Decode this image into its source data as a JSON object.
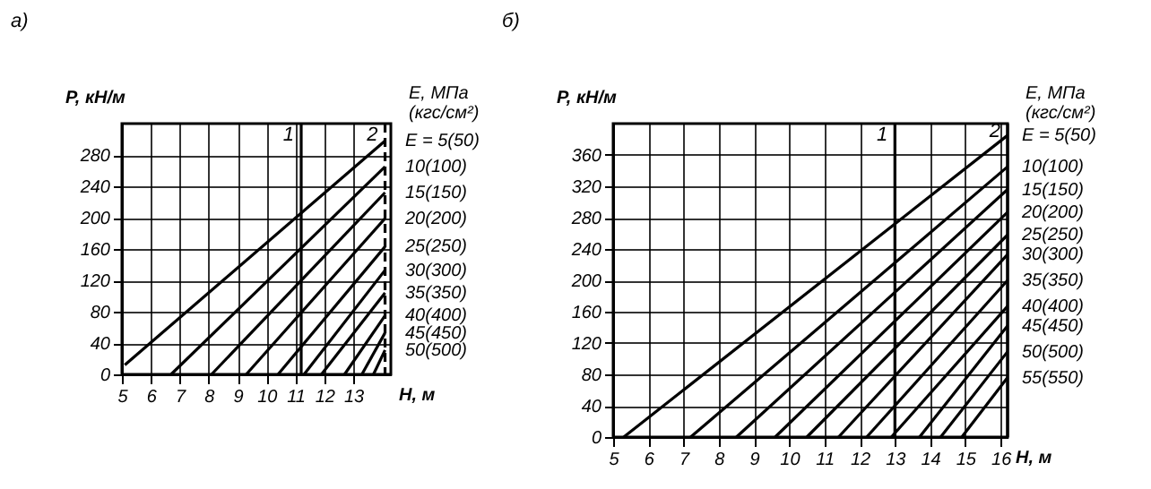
{
  "chart_data": [
    {
      "type": "line",
      "title": "а)",
      "xlabel": "H, м",
      "ylabel": "P, кН/м",
      "legend_title": "E, МПа (кгс/см²)",
      "legend": false,
      "grid": true,
      "xlim": [
        5,
        14.3
      ],
      "ylim": [
        0,
        320
      ],
      "xticks": [
        5,
        6,
        7,
        8,
        9,
        10,
        11,
        12,
        13
      ],
      "yticks": [
        0,
        40,
        80,
        120,
        160,
        200,
        240,
        280
      ],
      "series": [
        {
          "name": "E = 5(50)",
          "color": "#000000",
          "x": [
            5.1,
            14.1
          ],
          "values": [
            12,
            298
          ]
        },
        {
          "name": "10(100)",
          "color": "#000000",
          "x": [
            6.7,
            14.1
          ],
          "values": [
            0,
            265
          ]
        },
        {
          "name": "15(150)",
          "color": "#000000",
          "x": [
            8.1,
            14.1
          ],
          "values": [
            0,
            232
          ]
        },
        {
          "name": "20(200)",
          "color": "#000000",
          "x": [
            9.3,
            14.1
          ],
          "values": [
            0,
            199
          ]
        },
        {
          "name": "25(250)",
          "color": "#000000",
          "x": [
            10.4,
            14.1
          ],
          "values": [
            0,
            163
          ]
        },
        {
          "name": "30(300)",
          "color": "#000000",
          "x": [
            11.3,
            14.1
          ],
          "values": [
            0,
            133
          ]
        },
        {
          "name": "35(350)",
          "color": "#000000",
          "x": [
            11.9,
            14.1
          ],
          "values": [
            0,
            104
          ]
        },
        {
          "name": "40(400)",
          "color": "#000000",
          "x": [
            12.7,
            14.1
          ],
          "values": [
            0,
            75
          ]
        },
        {
          "name": "45(450)",
          "color": "#000000",
          "x": [
            13.3,
            14.1
          ],
          "values": [
            0,
            53
          ]
        },
        {
          "name": "50(500)",
          "color": "#000000",
          "x": [
            13.7,
            14.1
          ],
          "values": [
            0,
            31
          ]
        }
      ],
      "ref_lines": [
        {
          "axis": "x",
          "value": 11.2,
          "line_style": "solid",
          "color": "#000000"
        },
        {
          "axis": "x",
          "value": 14.1,
          "line_style": "dashed",
          "color": "#000000"
        }
      ],
      "annotations": [
        {
          "text": "1",
          "x": 11.2,
          "y": 305
        },
        {
          "text": "2",
          "x": 14.1,
          "y": 305
        }
      ]
    },
    {
      "type": "line",
      "title": "б)",
      "xlabel": "H, м",
      "ylabel": "P, кН/м",
      "legend_title": "E, МПа (кгс/см²)",
      "legend": false,
      "grid": true,
      "xlim": [
        5,
        16.2
      ],
      "ylim": [
        0,
        400
      ],
      "xticks": [
        5,
        6,
        7,
        8,
        9,
        10,
        11,
        12,
        13,
        14,
        15,
        16
      ],
      "yticks": [
        0,
        40,
        80,
        120,
        160,
        200,
        240,
        280,
        320,
        360
      ],
      "series": [
        {
          "name": "E = 5(50)",
          "color": "#000000",
          "x": [
            5.3,
            16.2
          ],
          "values": [
            0,
            385
          ]
        },
        {
          "name": "10(100)",
          "color": "#000000",
          "x": [
            7.2,
            16.2
          ],
          "values": [
            0,
            345
          ]
        },
        {
          "name": "15(150)",
          "color": "#000000",
          "x": [
            8.5,
            16.2
          ],
          "values": [
            0,
            316
          ]
        },
        {
          "name": "20(200)",
          "color": "#000000",
          "x": [
            9.6,
            16.2
          ],
          "values": [
            0,
            287
          ]
        },
        {
          "name": "25(250)",
          "color": "#000000",
          "x": [
            10.5,
            16.2
          ],
          "values": [
            0,
            258
          ]
        },
        {
          "name": "30(300)",
          "color": "#000000",
          "x": [
            11.4,
            16.2
          ],
          "values": [
            0,
            233
          ]
        },
        {
          "name": "35(350)",
          "color": "#000000",
          "x": [
            12.2,
            16.2
          ],
          "values": [
            0,
            200
          ]
        },
        {
          "name": "40(400)",
          "color": "#000000",
          "x": [
            12.9,
            16.2
          ],
          "values": [
            0,
            167
          ]
        },
        {
          "name": "45(450)",
          "color": "#000000",
          "x": [
            13.7,
            16.2
          ],
          "values": [
            0,
            142
          ]
        },
        {
          "name": "50(500)",
          "color": "#000000",
          "x": [
            14.3,
            16.2
          ],
          "values": [
            0,
            109
          ]
        },
        {
          "name": "55(550)",
          "color": "#000000",
          "x": [
            14.9,
            16.2
          ],
          "values": [
            0,
            76
          ]
        }
      ],
      "ref_lines": [
        {
          "axis": "x",
          "value": 13,
          "line_style": "solid",
          "color": "#000000"
        },
        {
          "axis": "x",
          "value": 16.2,
          "line_style": "solid",
          "color": "#000000"
        }
      ],
      "annotations": [
        {
          "text": "1",
          "x": 13,
          "y": 385
        },
        {
          "text": "2",
          "x": 16.2,
          "y": 390
        }
      ]
    }
  ]
}
